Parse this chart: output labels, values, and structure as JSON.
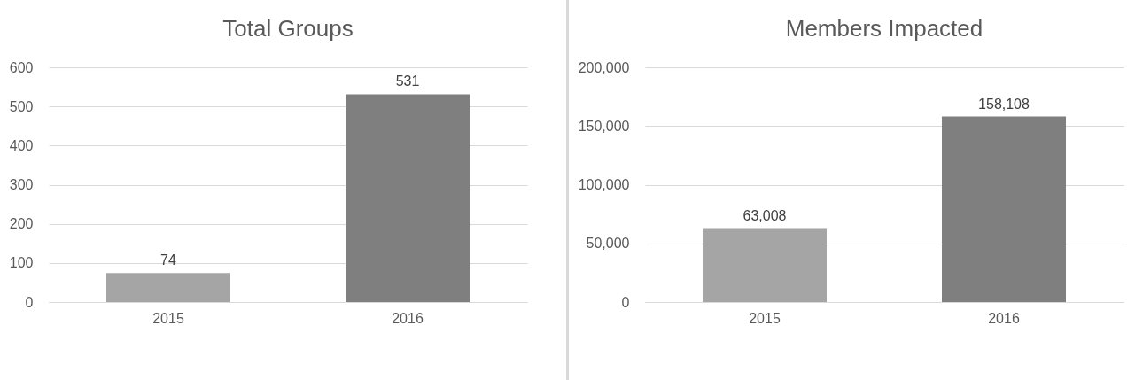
{
  "chart_data": [
    {
      "type": "bar",
      "title": "Total Groups",
      "categories": [
        "2015",
        "2016"
      ],
      "values": [
        74,
        531
      ],
      "colors": [
        "#a5a5a5",
        "#7f7f7f"
      ],
      "ylim": [
        0,
        600
      ],
      "yticks": [
        0,
        100,
        200,
        300,
        400,
        500,
        600
      ],
      "grid": "y",
      "data_labels": true
    },
    {
      "type": "bar",
      "title": "Members Impacted",
      "categories": [
        "2015",
        "2016"
      ],
      "values": [
        63008,
        158108
      ],
      "value_labels": [
        "63,008",
        "158,108"
      ],
      "colors": [
        "#a5a5a5",
        "#7f7f7f"
      ],
      "ylim": [
        0,
        200000
      ],
      "yticks": [
        0,
        {
          "value": 50000,
          "label": "50,000"
        },
        {
          "value": 100000,
          "label": "100,000"
        },
        {
          "value": 150000,
          "label": "150,000"
        },
        {
          "value": 200000,
          "label": "200,000"
        }
      ],
      "grid": "y"
    }
  ]
}
